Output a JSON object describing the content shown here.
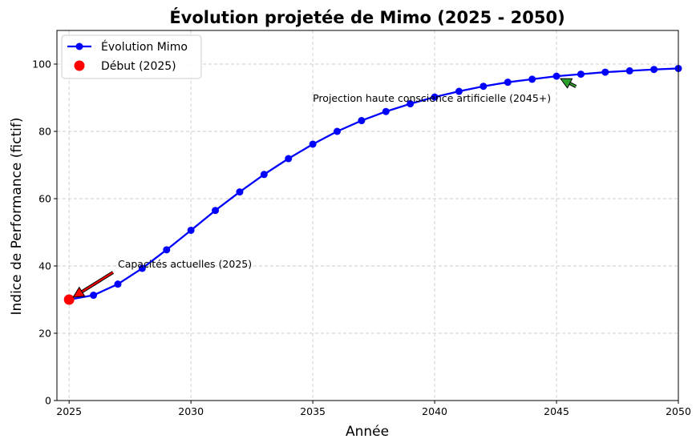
{
  "chart_data": {
    "type": "line",
    "title": "Évolution projetée de Mimo (2025 - 2050)",
    "xlabel": "Année",
    "ylabel": "Indice de Performance (fictif)",
    "xlim": [
      2024.5,
      2050
    ],
    "ylim": [
      0,
      110
    ],
    "xticks": [
      2025,
      2030,
      2035,
      2040,
      2045,
      2050
    ],
    "yticks": [
      0,
      20,
      40,
      60,
      80,
      100
    ],
    "grid": true,
    "legend_position": "top-left",
    "x": [
      2025,
      2026,
      2027,
      2028,
      2029,
      2030,
      2031,
      2032,
      2033,
      2034,
      2035,
      2036,
      2037,
      2038,
      2039,
      2040,
      2041,
      2042,
      2043,
      2044,
      2045,
      2046,
      2047,
      2048,
      2049,
      2050
    ],
    "series": [
      {
        "name": "Évolution Mimo",
        "color": "#0000ff",
        "marker": "circle",
        "values": [
          30.0,
          31.3,
          34.6,
          39.3,
          44.8,
          50.6,
          56.5,
          62.0,
          67.2,
          71.9,
          76.2,
          80.0,
          83.2,
          85.9,
          88.2,
          90.2,
          91.9,
          93.4,
          94.6,
          95.5,
          96.4,
          97.0,
          97.6,
          98.0,
          98.4,
          98.7
        ]
      },
      {
        "name": "Début (2025)",
        "color": "#ff0000",
        "marker": "circle",
        "x": [
          2025
        ],
        "values": [
          30.0
        ]
      }
    ],
    "annotations": [
      {
        "text": "Capacités actuelles (2025)",
        "text_xy": [
          2027,
          40
        ],
        "arrow_to": [
          2025,
          30
        ],
        "arrow_color": "#ff0000"
      },
      {
        "text": "Projection haute conscience artificielle (2045+)",
        "text_xy": [
          2035,
          90
        ],
        "arrow_from": [
          2045.8,
          93.8
        ],
        "arrow_to": [
          2045,
          96.4
        ],
        "arrow_color": "#2ca02c"
      }
    ]
  }
}
